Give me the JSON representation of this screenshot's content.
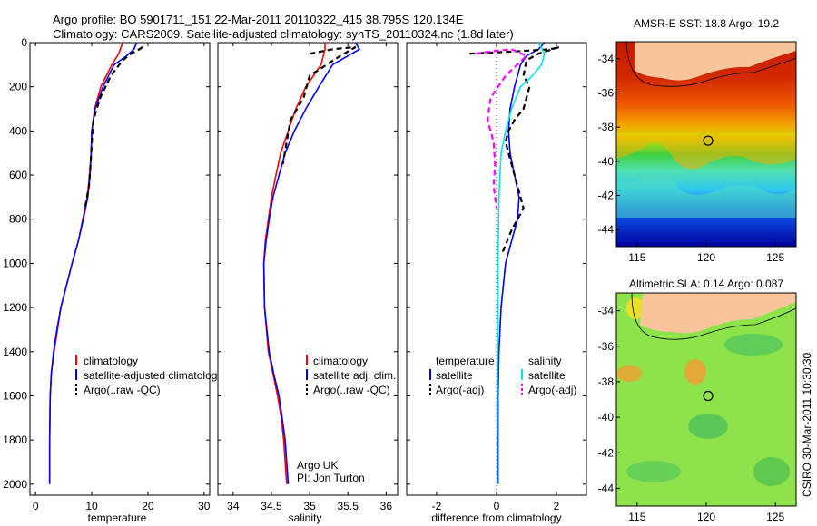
{
  "header": {
    "line1": "Argo profile: BO 5901711_151 22-Mar-2011 20110322_415 38.795S 120.134E",
    "line2": "Climatology: CARS2009. Satellite-adjusted climatology: synTS_20110324.nc (1.8d later)"
  },
  "credit": {
    "org": "Argo UK",
    "pi": "PI: Jon Turton",
    "stamp": "CSIRO 30-Mar-2011 10:30:30"
  },
  "colors": {
    "climatology": "#ff0000",
    "satellite": "#0000ff",
    "argo": "#000000",
    "salinity_satellite": "#00e5ee",
    "salinity_argo": "#ff00ff",
    "land": "#f8c49a"
  },
  "chart_data": [
    {
      "type": "line",
      "id": "temperature",
      "xlabel": "temperature",
      "ylabel": "",
      "xlim": [
        -1,
        31
      ],
      "ylim": [
        2050,
        0
      ],
      "xticks": [
        0,
        10,
        20,
        30
      ],
      "yticks": [
        0,
        200,
        400,
        600,
        800,
        1000,
        1200,
        1400,
        1600,
        1800,
        2000
      ],
      "legend": [
        "climatology",
        "satellite-adjusted climatology",
        "Argo(..raw -QC)"
      ],
      "series": [
        {
          "name": "climatology",
          "color": "#ff0000",
          "dash": "",
          "x": [
            15.5,
            14.8,
            13.6,
            12.6,
            11.6,
            10.5,
            10.0,
            9.9,
            9.6,
            9.2,
            8.4,
            7.6,
            6.5,
            5.5,
            4.5,
            3.9,
            3.3,
            2.8,
            2.6,
            2.5,
            2.5
          ],
          "y": [
            0,
            50,
            100,
            150,
            200,
            300,
            400,
            500,
            600,
            700,
            800,
            900,
            1000,
            1100,
            1200,
            1300,
            1400,
            1500,
            1600,
            1800,
            2000
          ]
        },
        {
          "name": "satellite-adjusted climatology",
          "color": "#0000ff",
          "dash": "",
          "x": [
            18.0,
            17.5,
            16.2,
            14.0,
            12.0,
            10.6,
            10.0,
            9.9,
            9.7,
            9.3,
            8.5,
            7.6,
            6.5,
            5.5,
            4.5,
            3.8,
            3.2,
            2.8,
            2.6,
            2.5,
            2.5
          ],
          "y": [
            0,
            30,
            60,
            100,
            200,
            300,
            400,
            500,
            600,
            700,
            800,
            900,
            1000,
            1100,
            1200,
            1300,
            1400,
            1500,
            1600,
            1800,
            2000
          ]
        },
        {
          "name": "Argo(..raw -QC)",
          "color": "#000000",
          "dash": "6,4",
          "x": [
            19.0,
            18.5,
            17.0,
            15.5,
            13.4,
            11.5,
            10.3,
            10.0,
            9.8,
            9.5,
            8.8
          ],
          "y": [
            20,
            30,
            50,
            80,
            150,
            250,
            350,
            450,
            550,
            650,
            750
          ]
        }
      ]
    },
    {
      "type": "line",
      "id": "salinity",
      "xlabel": "salinity",
      "xlim": [
        33.8,
        36.15
      ],
      "ylim": [
        2050,
        0
      ],
      "xticks": [
        34,
        34.5,
        35,
        35.5,
        36
      ],
      "legend": [
        "climatology",
        "satellite adj. clim.",
        "Argo(..raw -QC)"
      ],
      "series": [
        {
          "name": "climatology",
          "color": "#ff0000",
          "dash": "",
          "x": [
            35.2,
            35.2,
            35.15,
            35.05,
            34.95,
            34.82,
            34.72,
            34.62,
            34.56,
            34.5,
            34.46,
            34.42,
            34.4,
            34.41,
            34.46,
            34.52,
            34.58,
            34.63,
            34.66,
            34.68,
            34.7
          ],
          "y": [
            0,
            30,
            100,
            150,
            200,
            300,
            400,
            500,
            600,
            700,
            800,
            900,
            1000,
            1200,
            1400,
            1500,
            1600,
            1700,
            1800,
            1900,
            2000
          ]
        },
        {
          "name": "satellite adj. clim.",
          "color": "#0000ff",
          "dash": "",
          "x": [
            35.6,
            35.65,
            35.5,
            35.3,
            35.12,
            34.95,
            34.8,
            34.68,
            34.6,
            34.52,
            34.47,
            34.43,
            34.4,
            34.41,
            34.47,
            34.53,
            34.6,
            34.64,
            34.68,
            34.7,
            34.72
          ],
          "y": [
            0,
            30,
            60,
            100,
            200,
            300,
            400,
            500,
            600,
            700,
            800,
            900,
            1000,
            1200,
            1400,
            1500,
            1600,
            1700,
            1800,
            1900,
            2000
          ]
        },
        {
          "name": "Argo(..raw -QC)",
          "color": "#000000",
          "dash": "6,4",
          "x": [
            35.0,
            35.3,
            35.6,
            35.4,
            35.0,
            34.92,
            34.75,
            34.7,
            34.65
          ],
          "y": [
            50,
            30,
            20,
            60,
            150,
            250,
            350,
            450,
            550
          ]
        }
      ]
    },
    {
      "type": "line",
      "id": "difference",
      "xlabel": "difference from climatology",
      "xlim": [
        -3,
        3
      ],
      "ylim": [
        2050,
        0
      ],
      "xticks": [
        -2,
        0,
        2
      ],
      "legend": [
        "temperature",
        "satellite",
        "Argo(-adj)",
        "salinity",
        "satellite",
        "Argo(-adj)"
      ],
      "series": [
        {
          "name": "temperature satellite",
          "color": "#0000ff",
          "dash": "",
          "x": [
            1.6,
            1.4,
            1.0,
            0.8,
            0.6,
            0.45,
            0.4,
            0.45,
            0.6,
            0.75,
            0.7,
            0.5,
            0.3,
            0.15,
            0.08,
            0.05,
            0.05
          ],
          "y": [
            0,
            30,
            60,
            100,
            200,
            300,
            400,
            500,
            600,
            700,
            800,
            900,
            1000,
            1200,
            1400,
            1600,
            2000
          ]
        },
        {
          "name": "temperature Argo(-adj)",
          "color": "#000000",
          "dash": "6,4",
          "x": [
            -0.9,
            0.6,
            1.8,
            2.1,
            1.4,
            1.0,
            0.9,
            1.1,
            1.0,
            0.9,
            0.6,
            0.4,
            0.3,
            0.4,
            0.5,
            0.6,
            0.7,
            0.8,
            0.9,
            0.5,
            0.2
          ],
          "y": [
            50,
            40,
            30,
            20,
            50,
            80,
            150,
            200,
            250,
            300,
            350,
            400,
            450,
            500,
            550,
            600,
            650,
            700,
            750,
            850,
            950
          ]
        },
        {
          "name": "salinity satellite",
          "color": "#00e5ee",
          "dash": "",
          "x": [
            1.4,
            1.6,
            1.5,
            1.2,
            0.8,
            0.5,
            0.3,
            0.15,
            0.08,
            0.05,
            0.03,
            0.02,
            0.02
          ],
          "y": [
            0,
            50,
            100,
            150,
            200,
            300,
            400,
            500,
            700,
            1000,
            1400,
            1800,
            2000
          ]
        },
        {
          "name": "salinity Argo(-adj)",
          "color": "#ff00ff",
          "dash": "6,4",
          "x": [
            -0.7,
            -0.2,
            0.5,
            1.0,
            0.3,
            -0.2,
            -0.3,
            -0.1,
            -0.05,
            -0.1,
            0.0
          ],
          "y": [
            50,
            40,
            30,
            60,
            150,
            250,
            350,
            450,
            550,
            650,
            750
          ]
        }
      ]
    },
    {
      "type": "heatmap",
      "id": "sst-map",
      "title": "AMSR-E SST: 18.8 Argo: 19.2",
      "xlim": [
        113.5,
        126.5
      ],
      "ylim": [
        -45,
        -33
      ],
      "xticks": [
        115,
        120,
        125
      ],
      "yticks": [
        -34,
        -36,
        -38,
        -40,
        -42,
        -44
      ],
      "marker": [
        120.134,
        -38.795
      ]
    },
    {
      "type": "heatmap",
      "id": "sla-map",
      "title": "Altimetric SLA: 0.14 Argo: 0.087",
      "xlim": [
        113.5,
        126.5
      ],
      "ylim": [
        -45,
        -33
      ],
      "xticks": [
        115,
        120,
        125
      ],
      "yticks": [
        -34,
        -36,
        -38,
        -40,
        -42,
        -44
      ],
      "marker": [
        120.134,
        -38.795
      ]
    }
  ]
}
